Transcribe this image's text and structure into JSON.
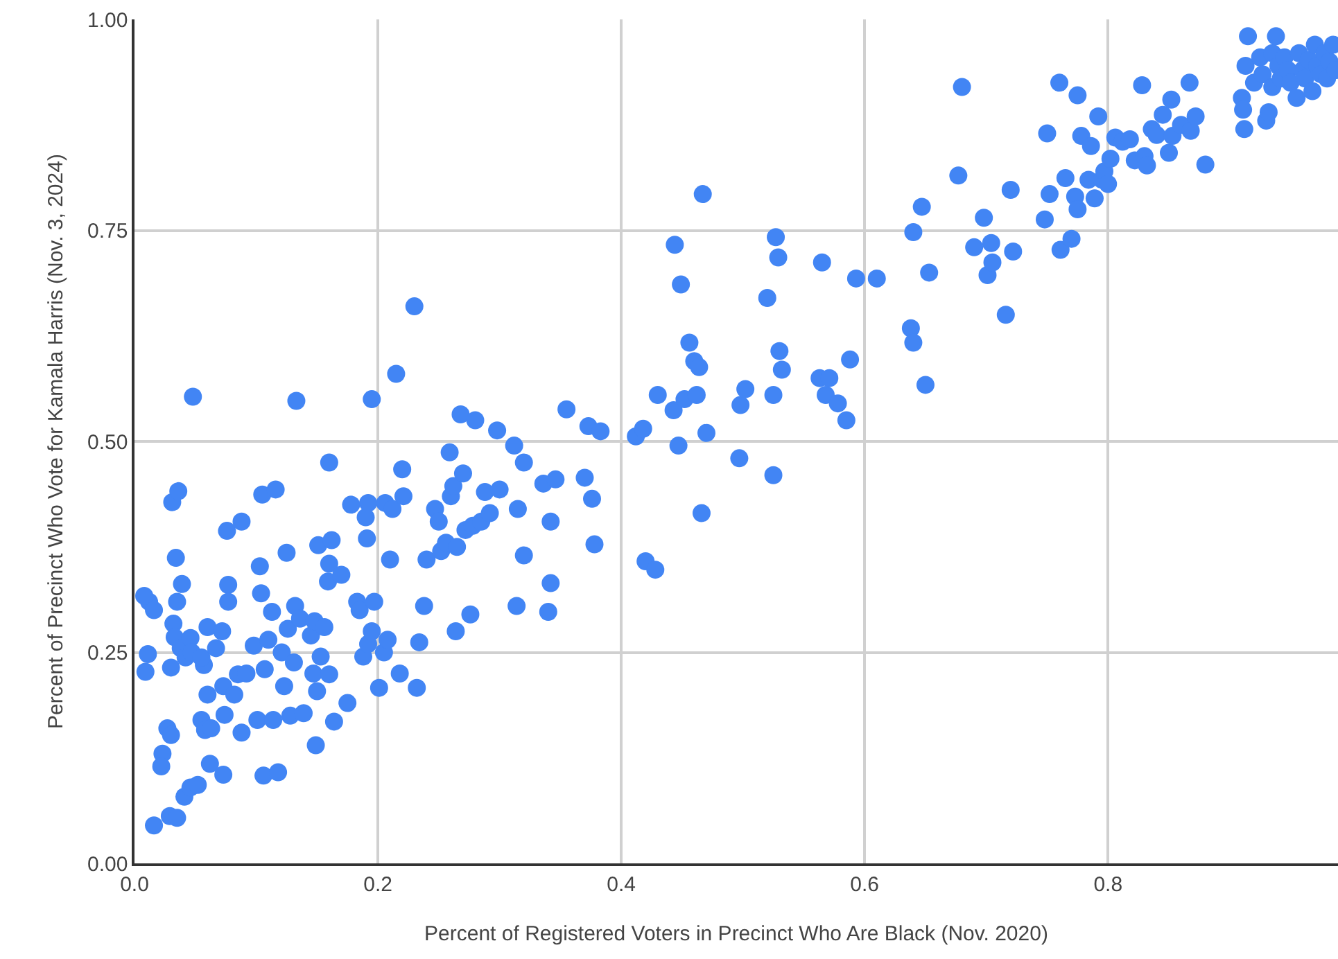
{
  "chart_data": {
    "type": "scatter",
    "xlabel": "Percent of Registered Voters in Precinct Who Are Black (Nov. 2020)",
    "ylabel": "Percent of Precinct Who Vote for Kamala Harris (Nov. 3, 2024)",
    "xlim": [
      0,
      0.989
    ],
    "ylim": [
      0,
      1
    ],
    "xticks": [
      {
        "value": 0,
        "label": "0.0"
      },
      {
        "value": 0.2,
        "label": "0.2"
      },
      {
        "value": 0.4,
        "label": "0.4"
      },
      {
        "value": 0.6,
        "label": "0.6"
      },
      {
        "value": 0.8,
        "label": "0.8"
      }
    ],
    "yticks": [
      {
        "value": 0,
        "label": "0.00"
      },
      {
        "value": 0.25,
        "label": "0.25"
      },
      {
        "value": 0.5,
        "label": "0.50"
      },
      {
        "value": 0.75,
        "label": "0.75"
      },
      {
        "value": 1,
        "label": "1.00"
      }
    ],
    "grid": true,
    "marker": "circle",
    "series": [
      {
        "color": "#4285f4",
        "x": [
          0.012,
          0.008,
          0.016,
          0.011,
          0.009,
          0.016,
          0.023,
          0.022,
          0.027,
          0.03,
          0.029,
          0.035,
          0.031,
          0.036,
          0.034,
          0.039,
          0.035,
          0.032,
          0.033,
          0.03,
          0.038,
          0.042,
          0.046,
          0.047,
          0.041,
          0.046,
          0.052,
          0.048,
          0.055,
          0.058,
          0.063,
          0.062,
          0.06,
          0.057,
          0.055,
          0.06,
          0.067,
          0.072,
          0.073,
          0.074,
          0.073,
          0.077,
          0.077,
          0.076,
          0.088,
          0.082,
          0.085,
          0.088,
          0.092,
          0.098,
          0.101,
          0.103,
          0.104,
          0.105,
          0.106,
          0.107,
          0.11,
          0.113,
          0.114,
          0.116,
          0.118,
          0.121,
          0.123,
          0.125,
          0.126,
          0.128,
          0.131,
          0.132,
          0.133,
          0.136,
          0.139,
          0.145,
          0.147,
          0.148,
          0.149,
          0.15,
          0.151,
          0.153,
          0.156,
          0.159,
          0.16,
          0.16,
          0.16,
          0.162,
          0.164,
          0.17,
          0.175,
          0.178,
          0.183,
          0.185,
          0.188,
          0.19,
          0.192,
          0.191,
          0.192,
          0.195,
          0.195,
          0.197,
          0.201,
          0.205,
          0.206,
          0.208,
          0.21,
          0.212,
          0.215,
          0.218,
          0.22,
          0.221,
          0.23,
          0.232,
          0.234,
          0.238,
          0.24,
          0.247,
          0.25,
          0.252,
          0.256,
          0.259,
          0.26,
          0.262,
          0.264,
          0.265,
          0.268,
          0.27,
          0.272,
          0.276,
          0.278,
          0.28,
          0.285,
          0.288,
          0.292,
          0.298,
          0.3,
          0.312,
          0.314,
          0.315,
          0.32,
          0.32,
          0.336,
          0.34,
          0.342,
          0.342,
          0.346,
          0.355,
          0.37,
          0.373,
          0.376,
          0.378,
          0.383,
          0.412,
          0.418,
          0.42,
          0.428,
          0.43,
          0.443,
          0.444,
          0.447,
          0.449,
          0.452,
          0.456,
          0.46,
          0.462,
          0.464,
          0.466,
          0.467,
          0.47,
          0.497,
          0.498,
          0.502,
          0.52,
          0.525,
          0.525,
          0.527,
          0.529,
          0.53,
          0.532,
          0.563,
          0.565,
          0.568,
          0.571,
          0.578,
          0.585,
          0.588,
          0.593,
          0.61,
          0.638,
          0.64,
          0.64,
          0.647,
          0.65,
          0.653,
          0.677,
          0.68,
          0.69,
          0.698,
          0.701,
          0.704,
          0.705,
          0.716,
          0.72,
          0.722,
          0.748,
          0.75,
          0.752,
          0.76,
          0.761,
          0.765,
          0.77,
          0.773,
          0.775,
          0.775,
          0.778,
          0.784,
          0.786,
          0.789,
          0.792,
          0.795,
          0.797,
          0.8,
          0.802,
          0.806,
          0.812,
          0.818,
          0.822,
          0.828,
          0.83,
          0.832,
          0.836,
          0.84,
          0.845,
          0.85,
          0.852,
          0.853,
          0.86,
          0.867,
          0.868,
          0.872,
          0.88,
          0.91,
          0.911,
          0.912,
          0.913,
          0.915,
          0.92,
          0.925,
          0.927,
          0.93,
          0.932,
          0.935,
          0.935,
          0.938,
          0.94,
          0.942,
          0.945,
          0.948,
          0.95,
          0.955,
          0.957,
          0.96,
          0.962,
          0.965,
          0.968,
          0.97,
          0.972,
          0.975,
          0.978,
          0.98,
          0.982,
          0.985,
          0.987
        ],
        "values": [
          0.31,
          0.317,
          0.3,
          0.248,
          0.227,
          0.045,
          0.13,
          0.115,
          0.16,
          0.152,
          0.056,
          0.054,
          0.428,
          0.441,
          0.362,
          0.331,
          0.31,
          0.284,
          0.268,
          0.232,
          0.255,
          0.244,
          0.267,
          0.25,
          0.079,
          0.09,
          0.093,
          0.553,
          0.17,
          0.158,
          0.16,
          0.118,
          0.2,
          0.235,
          0.244,
          0.28,
          0.255,
          0.275,
          0.105,
          0.176,
          0.21,
          0.33,
          0.31,
          0.394,
          0.405,
          0.2,
          0.224,
          0.155,
          0.225,
          0.258,
          0.17,
          0.352,
          0.32,
          0.437,
          0.104,
          0.23,
          0.265,
          0.298,
          0.17,
          0.443,
          0.108,
          0.25,
          0.21,
          0.368,
          0.278,
          0.175,
          0.238,
          0.305,
          0.548,
          0.29,
          0.178,
          0.27,
          0.225,
          0.287,
          0.14,
          0.204,
          0.377,
          0.245,
          0.28,
          0.334,
          0.355,
          0.224,
          0.475,
          0.383,
          0.168,
          0.342,
          0.19,
          0.425,
          0.31,
          0.3,
          0.245,
          0.41,
          0.427,
          0.385,
          0.26,
          0.55,
          0.275,
          0.31,
          0.208,
          0.25,
          0.427,
          0.265,
          0.36,
          0.42,
          0.58,
          0.225,
          0.467,
          0.435,
          0.66,
          0.208,
          0.262,
          0.305,
          0.36,
          0.42,
          0.405,
          0.37,
          0.38,
          0.487,
          0.435,
          0.447,
          0.275,
          0.375,
          0.532,
          0.462,
          0.395,
          0.295,
          0.4,
          0.525,
          0.405,
          0.44,
          0.415,
          0.513,
          0.443,
          0.495,
          0.305,
          0.42,
          0.365,
          0.475,
          0.45,
          0.298,
          0.405,
          0.332,
          0.455,
          0.538,
          0.457,
          0.518,
          0.432,
          0.378,
          0.512,
          0.506,
          0.515,
          0.358,
          0.348,
          0.555,
          0.537,
          0.733,
          0.495,
          0.686,
          0.55,
          0.617,
          0.595,
          0.555,
          0.588,
          0.415,
          0.793,
          0.51,
          0.48,
          0.543,
          0.562,
          0.67,
          0.46,
          0.555,
          0.742,
          0.718,
          0.607,
          0.585,
          0.575,
          0.712,
          0.555,
          0.575,
          0.545,
          0.525,
          0.597,
          0.693,
          0.693,
          0.634,
          0.748,
          0.617,
          0.778,
          0.567,
          0.7,
          0.815,
          0.92,
          0.73,
          0.765,
          0.697,
          0.735,
          0.712,
          0.65,
          0.798,
          0.725,
          0.763,
          0.865,
          0.793,
          0.925,
          0.727,
          0.812,
          0.74,
          0.79,
          0.91,
          0.775,
          0.862,
          0.81,
          0.85,
          0.788,
          0.885,
          0.81,
          0.82,
          0.805,
          0.835,
          0.86,
          0.855,
          0.858,
          0.833,
          0.922,
          0.838,
          0.827,
          0.87,
          0.863,
          0.887,
          0.842,
          0.905,
          0.862,
          0.875,
          0.925,
          0.868,
          0.885,
          0.828,
          0.907,
          0.893,
          0.87,
          0.945,
          0.98,
          0.925,
          0.955,
          0.935,
          0.88,
          0.89,
          0.96,
          0.92,
          0.98,
          0.945,
          0.93,
          0.955,
          0.94,
          0.925,
          0.907,
          0.96,
          0.94,
          0.93,
          0.952,
          0.915,
          0.97,
          0.945,
          0.935,
          0.96,
          0.93,
          0.95,
          0.97,
          0.94
        ]
      }
    ]
  }
}
